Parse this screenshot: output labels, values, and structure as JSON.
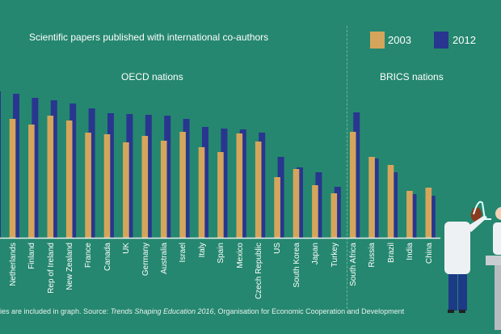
{
  "colors": {
    "background": "#25876f",
    "series_2003": "#d6a55c",
    "series_2012": "#29368f",
    "baseline": "#e6efe9"
  },
  "chart_data": {
    "type": "bar",
    "title": "Scientific papers published with international co-authors",
    "groups": [
      {
        "label": "OECD nations",
        "categories": [
          "Netherlands",
          "Finland",
          "Rep of Ireland",
          "New Zealand",
          "France",
          "Canada",
          "UK",
          "Germany",
          "Australia",
          "Israel",
          "Italy",
          "Spain",
          "Mexico",
          "Czech Republic",
          "US",
          "South Korea",
          "Japan",
          "Turkey"
        ]
      },
      {
        "label": "BRICS nations",
        "categories": [
          "South Africa",
          "Russia",
          "Brazil",
          "India",
          "China"
        ]
      }
    ],
    "categories": [
      "Netherlands",
      "Finland",
      "Rep of Ireland",
      "New Zealand",
      "France",
      "Canada",
      "UK",
      "Germany",
      "Australia",
      "Israel",
      "Italy",
      "Spain",
      "Mexico",
      "Czech Republic",
      "US",
      "South Korea",
      "Japan",
      "Turkey",
      "South Africa",
      "Russia",
      "Brazil",
      "India",
      "China"
    ],
    "series": [
      {
        "name": "2003",
        "values": [
          147,
          140,
          151,
          145,
          130,
          128,
          118,
          126,
          120,
          131,
          112,
          106,
          129,
          119,
          75,
          85,
          65,
          55,
          131,
          100,
          90,
          58,
          62
        ]
      },
      {
        "name": "2012",
        "values": [
          178,
          173,
          170,
          166,
          160,
          154,
          153,
          152,
          151,
          147,
          137,
          135,
          134,
          130,
          100,
          87,
          81,
          63,
          155,
          98,
          81,
          54,
          52
        ]
      }
    ],
    "xlabel": "",
    "ylabel": "",
    "y_axis_shown": false,
    "grid": false,
    "legend": "top-right"
  },
  "footnote": {
    "prefix": "ries are included in graph.  Source: ",
    "source_title": "Trends Shaping Education 2016",
    "suffix": ", Organisation for Economic Cooperation and Development"
  }
}
